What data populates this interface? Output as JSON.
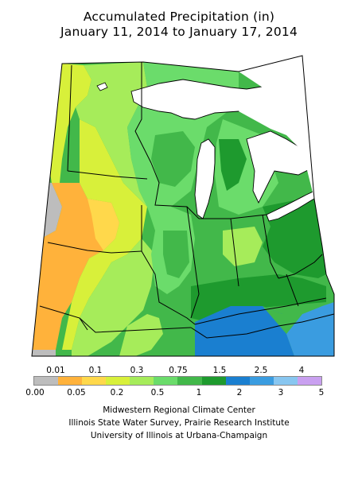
{
  "title": {
    "line1": "Accumulated Precipitation (in)",
    "line2": "January 11, 2014 to January 17, 2014"
  },
  "legend": {
    "swatch_colors": [
      "#bdbdbd",
      "#ffb23b",
      "#ffd84b",
      "#d8f03a",
      "#a6ec5a",
      "#6bdc6b",
      "#42b84a",
      "#1e9a2e",
      "#1a7fd0",
      "#3a9ce0",
      "#88c6f0",
      "#c9a0f0"
    ],
    "top_labels": [
      "0.01",
      "0.1",
      "0.3",
      "0.75",
      "1.5",
      "2.5",
      "4"
    ],
    "bottom_labels": [
      "0.00",
      "0.05",
      "0.2",
      "0.5",
      "1",
      "2",
      "3",
      "5"
    ]
  },
  "credits": {
    "line1": "Midwestern Regional Climate Center",
    "line2": "Illinois State Water Survey, Prairie Research Institute",
    "line3": "University of Illinois at Urbana-Champaign"
  },
  "map": {
    "colors": {
      "gray": "#bdbdbd",
      "orange": "#ffb23b",
      "yellow": "#d8f03a",
      "lightgreen": "#a6ec5a",
      "green": "#6bdc6b",
      "midgreen": "#42b84a",
      "darkgreen": "#1e9a2e",
      "blue": "#1a7fd0",
      "lightblue": "#3a9ce0",
      "water": "#ffffff",
      "border": "#000000"
    }
  }
}
